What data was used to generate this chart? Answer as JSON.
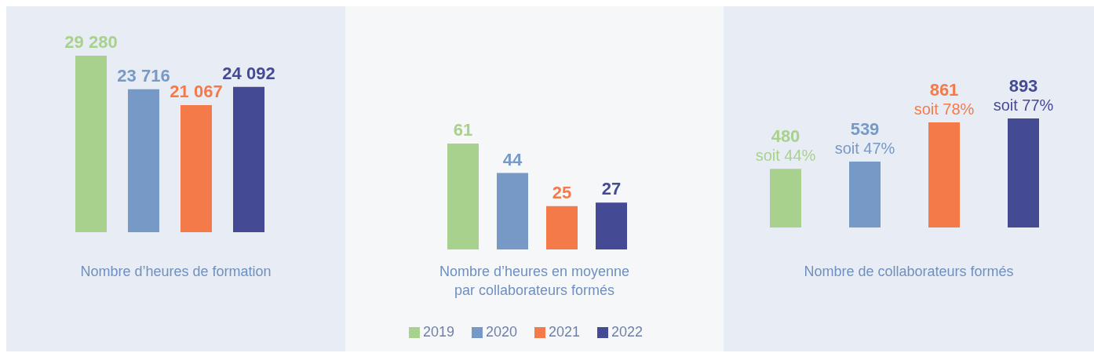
{
  "chart_data": [
    {
      "type": "bar",
      "categories": [
        null,
        null,
        null,
        null
      ],
      "xlabel": "Nombre d’heures de formation",
      "values": [
        29280,
        23716,
        21067,
        24092
      ],
      "colors": [
        "#a9d18e",
        "#7799c6",
        "#f47a4a",
        "#454a94"
      ],
      "value_labels": [
        "29 280",
        "23 716",
        "21 067",
        "24 092"
      ]
    },
    {
      "type": "bar",
      "categories": [
        null,
        null,
        null,
        null
      ],
      "stacked": true,
      "xlabel": "Nombre d’heures en moyenne\npar collaborateurs formés",
      "legend": "bottom",
      "series": [
        {
          "name": "2019",
          "color": "#a9d18e",
          "values": [
            61,
            null,
            null,
            null
          ],
          "value_labels": [
            "61",
            null,
            null,
            null
          ]
        },
        {
          "name": "2020",
          "color": "#7799c6",
          "values": [
            null,
            44,
            null,
            null
          ],
          "value_labels": [
            null,
            "44",
            null,
            null
          ]
        },
        {
          "name": "2021",
          "color": "#f47a4a",
          "values": [
            null,
            null,
            25,
            null
          ],
          "value_labels": [
            null,
            null,
            "25",
            null
          ]
        },
        {
          "name": "2022",
          "color": "#454a94",
          "values": [
            null,
            null,
            null,
            27
          ],
          "value_labels": [
            null,
            null,
            null,
            "27"
          ]
        }
      ]
    },
    {
      "type": "bar",
      "categories": [
        null,
        null,
        null,
        null
      ],
      "xlabel": "Nombre de collaborateurs formés",
      "values": [
        480,
        539,
        861,
        893
      ],
      "colors": [
        "#a9d18e",
        "#7799c6",
        "#f47a4a",
        "#454a94"
      ],
      "value_labels": [
        "480\nsoit 44%",
        "539\nsoit 47%",
        "861\nsoit 78%",
        "893\nsoit 77%"
      ]
    }
  ]
}
